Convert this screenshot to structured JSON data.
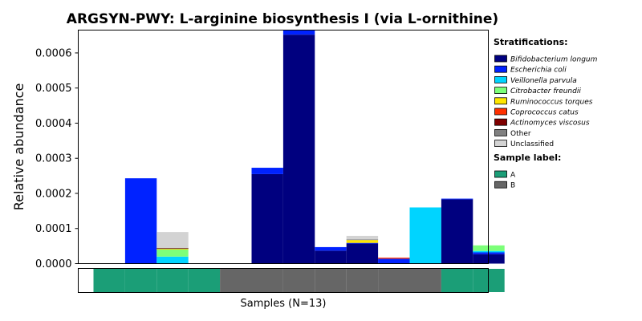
{
  "chart_data": {
    "type": "bar",
    "stacked": true,
    "title": "ARGSYN-PWY: L-arginine biosynthesis I (via L-ornithine)",
    "ylabel": "Relative abundance",
    "xlabel": "Samples (N=13)",
    "ylim": [
      0,
      0.000665
    ],
    "yticks": [
      "0.0000",
      "0.0001",
      "0.0002",
      "0.0003",
      "0.0004",
      "0.0005",
      "0.0006"
    ],
    "ytick_values": [
      0,
      0.0001,
      0.0002,
      0.0003,
      0.0004,
      0.0005,
      0.0006
    ],
    "n_samples": 13,
    "series": [
      {
        "name": "Bifidobacterium longum",
        "color": "#00007f",
        "values": [
          0,
          0,
          0,
          0,
          0,
          0.000255,
          0.000652,
          3.7e-05,
          5.7e-05,
          0,
          0,
          0.000183,
          2.7e-05
        ]
      },
      {
        "name": "Escherichia coli",
        "color": "#0022ff",
        "values": [
          0,
          0.000243,
          0,
          0,
          0,
          1.8e-05,
          1.3e-05,
          1e-05,
          2e-06,
          1.4e-05,
          0,
          2e-06,
          5e-06
        ]
      },
      {
        "name": "Veillonella parvula",
        "color": "#00d4ff",
        "values": [
          0,
          0,
          2e-05,
          0,
          0,
          0,
          0,
          0,
          0,
          0,
          0.00016,
          0,
          4e-06
        ]
      },
      {
        "name": "Citrobacter freundii",
        "color": "#7cff79",
        "values": [
          0,
          0,
          2e-05,
          0,
          0,
          0,
          0,
          0,
          0,
          0,
          0,
          0,
          1.6e-05
        ]
      },
      {
        "name": "Ruminococcus torques",
        "color": "#ffe600",
        "values": [
          0,
          0,
          2e-06,
          0,
          0,
          0,
          0,
          0,
          8e-06,
          0,
          0,
          0,
          0
        ]
      },
      {
        "name": "Coprococcus catus",
        "color": "#ff3000",
        "values": [
          0,
          0,
          0,
          0,
          0,
          0,
          0,
          0,
          0,
          3e-06,
          0,
          0,
          0
        ]
      },
      {
        "name": "Actinomyces viscosus",
        "color": "#7f0000",
        "values": [
          0,
          0,
          2e-06,
          0,
          0,
          0,
          0,
          0,
          0,
          0,
          0,
          0,
          0
        ]
      },
      {
        "name": "Other",
        "color": "#808080",
        "values": [
          0,
          0,
          1e-06,
          0,
          0,
          0,
          0,
          0,
          2e-06,
          0,
          0,
          0,
          0
        ]
      },
      {
        "name": "Unclassified",
        "color": "#d3d3d3",
        "values": [
          0,
          0,
          4.5e-05,
          0,
          0,
          0,
          0,
          0,
          1e-05,
          0,
          0,
          0,
          0
        ]
      }
    ],
    "sample_labels": [
      "A",
      "A",
      "A",
      "A",
      "B",
      "B",
      "B",
      "B",
      "B",
      "B",
      "B",
      "A",
      "A"
    ],
    "sample_label_colors": {
      "A": "#1b9e77",
      "B": "#666666"
    },
    "legend": {
      "placement": "right",
      "stratifications_title": "Stratifications:",
      "sample_label_title": "Sample label:",
      "sample_labels": [
        "A",
        "B"
      ]
    }
  }
}
